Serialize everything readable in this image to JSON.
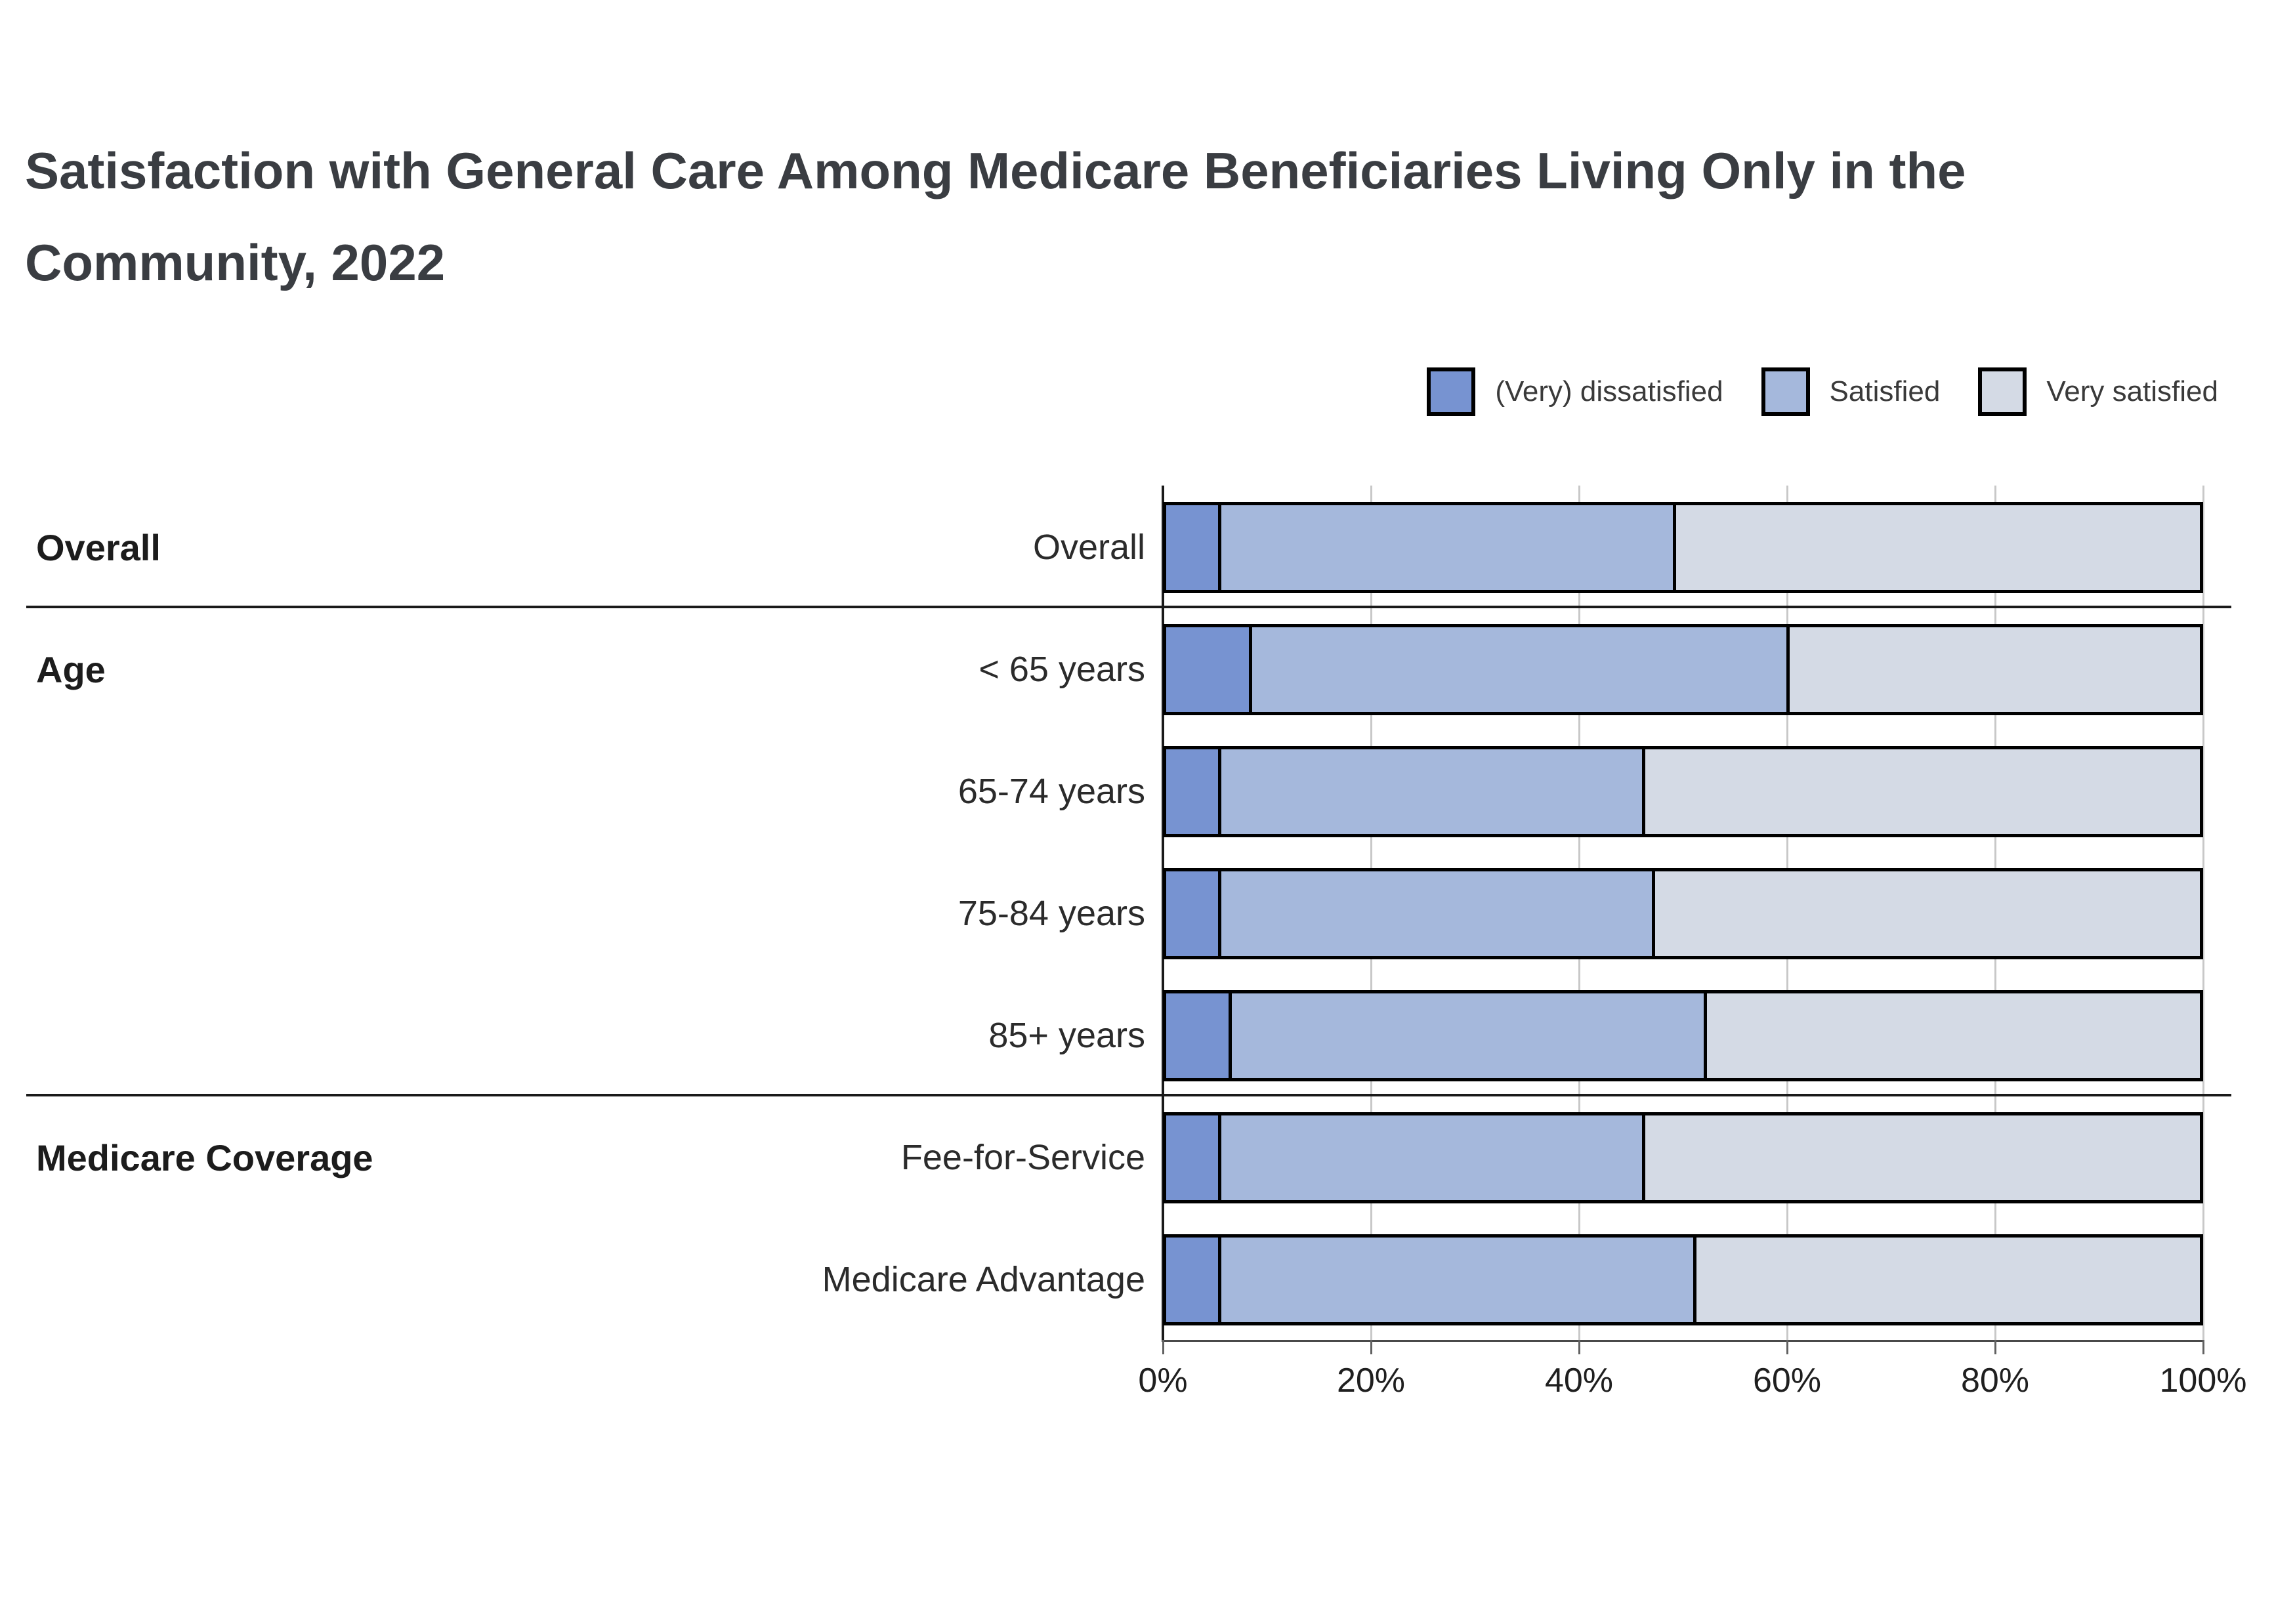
{
  "title": "Satisfaction with General Care Among Medicare Beneficiaries Living Only in the Community, 2022",
  "legend": [
    {
      "label": "(Very) dissatisfied",
      "color": "#7793d1"
    },
    {
      "label": "Satisfied",
      "color": "#a5b8dc"
    },
    {
      "label": "Very satisfied",
      "color": "#d4dae5"
    }
  ],
  "chart_data": {
    "type": "bar",
    "orientation": "horizontal",
    "stacked": true,
    "title": "Satisfaction with General Care Among Medicare Beneficiaries Living Only in the Community, 2022",
    "categories": [
      "Overall",
      "< 65 years",
      "65-74 years",
      "75-84 years",
      "85+ years",
      "Fee-for-Service",
      "Medicare Advantage"
    ],
    "groups": [
      {
        "label": "Overall",
        "first_row": 0,
        "last_row": 0
      },
      {
        "label": "Age",
        "first_row": 1,
        "last_row": 4
      },
      {
        "label": "Medicare Coverage",
        "first_row": 5,
        "last_row": 6
      }
    ],
    "series": [
      {
        "name": "(Very) dissatisfied",
        "color": "#7793d1",
        "values": [
          5,
          8,
          5,
          5,
          6,
          5,
          5
        ]
      },
      {
        "name": "Satisfied",
        "color": "#a5b8dc",
        "values": [
          44,
          52,
          41,
          42,
          46,
          41,
          46
        ]
      },
      {
        "name": "Very satisfied",
        "color": "#d4dae5",
        "values": [
          51,
          40,
          54,
          53,
          48,
          54,
          49
        ]
      }
    ],
    "xlabel": "",
    "ylabel": "",
    "x_axis": {
      "min": 0,
      "max": 100,
      "unit": "%",
      "ticks": [
        "0%",
        "20%",
        "40%",
        "60%",
        "80%",
        "100%"
      ],
      "tick_values": [
        0,
        20,
        40,
        60,
        80,
        100
      ]
    },
    "grid": true,
    "legend_position": "top-right",
    "bar_border_color": "#000000"
  }
}
